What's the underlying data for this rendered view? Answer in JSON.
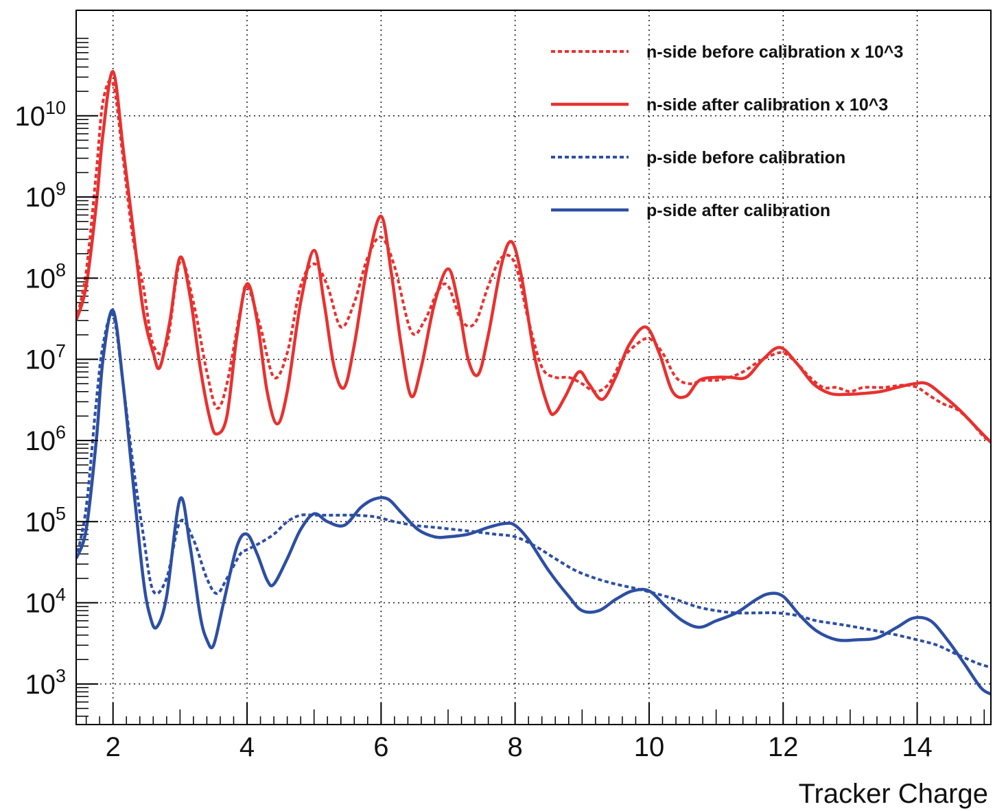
{
  "chart_data": {
    "type": "line",
    "xlabel": "Tracker Charge",
    "ylabel": "",
    "xlim": [
      1.45,
      15.1
    ],
    "ylim_log10": [
      2.5,
      11.3
    ],
    "y_scale": "log",
    "grid": true,
    "legend_position": "top-right",
    "x_ticks": [
      {
        "value": 2,
        "label": "2"
      },
      {
        "value": 4,
        "label": "4"
      },
      {
        "value": 6,
        "label": "6"
      },
      {
        "value": 8,
        "label": "8"
      },
      {
        "value": 10,
        "label": "10"
      },
      {
        "value": 12,
        "label": "12"
      },
      {
        "value": 14,
        "label": "14"
      }
    ],
    "y_ticks": [
      {
        "exp": 3,
        "base": "10",
        "power": "3"
      },
      {
        "exp": 4,
        "base": "10",
        "power": "4"
      },
      {
        "exp": 5,
        "base": "10",
        "power": "5"
      },
      {
        "exp": 6,
        "base": "10",
        "power": "6"
      },
      {
        "exp": 7,
        "base": "10",
        "power": "7"
      },
      {
        "exp": 8,
        "base": "10",
        "power": "8"
      },
      {
        "exp": 9,
        "base": "10",
        "power": "9"
      },
      {
        "exp": 10,
        "base": "10",
        "power": "10"
      }
    ],
    "series": [
      {
        "name": "n-side before calibration x 10^3",
        "color": "#e8312f",
        "style": "dotted",
        "x": [
          1.45,
          1.6,
          1.75,
          1.85,
          2.0,
          2.15,
          2.3,
          2.45,
          2.6,
          2.8,
          3.0,
          3.2,
          3.4,
          3.55,
          3.7,
          3.9,
          4.0,
          4.2,
          4.4,
          4.6,
          4.8,
          5.0,
          5.2,
          5.4,
          5.6,
          5.8,
          6.0,
          6.2,
          6.45,
          6.65,
          6.85,
          7.0,
          7.2,
          7.4,
          7.6,
          7.8,
          8.0,
          8.2,
          8.4,
          8.6,
          8.8,
          9.0,
          9.2,
          9.4,
          9.6,
          9.8,
          10.0,
          10.2,
          10.4,
          10.6,
          10.8,
          11.0,
          11.2,
          11.4,
          11.6,
          11.8,
          12.0,
          12.2,
          12.4,
          12.6,
          12.8,
          13.0,
          13.2,
          13.5,
          13.8,
          14.0,
          14.2,
          14.4,
          14.6,
          14.8,
          15.0,
          15.1
        ],
        "y": [
          30000000.0,
          120000000.0,
          2000000000.0,
          15000000000.0,
          25000000000.0,
          3000000000.0,
          300000000.0,
          80000000.0,
          15000000.0,
          15000000.0,
          160000000.0,
          50000000.0,
          7000000.0,
          2500000.0,
          5000000.0,
          40000000.0,
          80000000.0,
          25000000.0,
          6000000.0,
          12000000.0,
          80000000.0,
          150000000.0,
          80000000.0,
          25000000.0,
          50000000.0,
          180000000.0,
          320000000.0,
          140000000.0,
          22000000.0,
          30000000.0,
          70000000.0,
          80000000.0,
          30000000.0,
          28000000.0,
          80000000.0,
          180000000.0,
          150000000.0,
          30000000.0,
          8000000.0,
          6000000.0,
          6000000.0,
          5000000.0,
          4000000.0,
          5000000.0,
          10000000.0,
          15000000.0,
          18000000.0,
          12000000.0,
          6000000.0,
          5000000.0,
          5500000.0,
          5500000.0,
          6000000.0,
          7000000.0,
          9000000.0,
          11000000.0,
          12000000.0,
          9000000.0,
          6000000.0,
          4500000.0,
          4500000.0,
          4000000.0,
          4500000.0,
          4500000.0,
          4800000.0,
          4500000.0,
          3500000.0,
          2800000.0,
          2400000.0,
          1700000.0,
          1100000.0,
          1000000.0
        ]
      },
      {
        "name": "n-side after  calibration x 10^3",
        "color": "#e8312f",
        "style": "solid",
        "x": [
          1.45,
          1.6,
          1.75,
          1.85,
          2.0,
          2.15,
          2.3,
          2.45,
          2.6,
          2.7,
          2.85,
          3.0,
          3.15,
          3.3,
          3.45,
          3.55,
          3.7,
          3.85,
          4.0,
          4.15,
          4.3,
          4.45,
          4.6,
          4.8,
          5.0,
          5.15,
          5.3,
          5.45,
          5.6,
          5.8,
          6.0,
          6.15,
          6.3,
          6.45,
          6.6,
          6.8,
          7.0,
          7.15,
          7.3,
          7.45,
          7.6,
          7.8,
          7.95,
          8.1,
          8.3,
          8.5,
          8.6,
          8.75,
          8.95,
          9.1,
          9.3,
          9.5,
          9.7,
          9.95,
          10.15,
          10.35,
          10.55,
          10.75,
          11.0,
          11.2,
          11.45,
          11.7,
          11.95,
          12.2,
          12.45,
          12.7,
          12.95,
          13.2,
          13.45,
          13.7,
          13.95,
          14.15,
          14.4,
          14.65,
          14.9,
          15.1
        ],
        "y": [
          30000000.0,
          80000000.0,
          800000000.0,
          6000000000.0,
          35000000000.0,
          4000000000.0,
          400000000.0,
          40000000.0,
          12000000.0,
          8000000.0,
          30000000.0,
          180000000.0,
          60000000.0,
          8000000.0,
          1800000.0,
          1200000.0,
          2000000.0,
          20000000.0,
          85000000.0,
          30000000.0,
          4000000.0,
          1600000.0,
          4000000.0,
          50000000.0,
          220000000.0,
          50000000.0,
          8000000.0,
          4500000.0,
          15000000.0,
          150000000.0,
          580000000.0,
          120000000.0,
          15000000.0,
          3500000.0,
          8000000.0,
          50000000.0,
          130000000.0,
          50000000.0,
          10000000.0,
          6500000.0,
          20000000.0,
          150000000.0,
          280000000.0,
          100000000.0,
          10000000.0,
          2500000.0,
          2200000.0,
          3500000.0,
          7000000.0,
          5000000.0,
          3200000.0,
          6000000.0,
          15000000.0,
          25000000.0,
          12000000.0,
          4000000.0,
          3500000.0,
          5500000.0,
          6000000.0,
          6000000.0,
          6000000.0,
          10000000.0,
          14000000.0,
          9000000.0,
          5000000.0,
          3800000.0,
          3700000.0,
          3800000.0,
          4000000.0,
          4500000.0,
          5000000.0,
          5000000.0,
          3500000.0,
          2300000.0,
          1400000.0,
          950000.0
        ]
      },
      {
        "name": "p-side before calibration",
        "color": "#2d4fa3",
        "style": "dotted",
        "x": [
          1.45,
          1.6,
          1.75,
          1.85,
          2.0,
          2.15,
          2.3,
          2.45,
          2.6,
          2.8,
          3.0,
          3.2,
          3.4,
          3.55,
          3.7,
          3.9,
          4.0,
          4.2,
          4.4,
          4.6,
          4.8,
          5.0,
          5.3,
          5.6,
          5.9,
          6.2,
          6.5,
          6.8,
          7.1,
          7.4,
          7.7,
          8.0,
          8.3,
          8.6,
          8.9,
          9.2,
          9.5,
          9.8,
          10.1,
          10.4,
          10.7,
          11.0,
          11.3,
          11.6,
          11.9,
          12.2,
          12.5,
          12.8,
          13.1,
          13.4,
          13.7,
          14.0,
          14.3,
          14.6,
          14.9,
          15.1
        ],
        "y": [
          35000.0,
          150000.0,
          3000000.0,
          15000000.0,
          35000000.0,
          5000000.0,
          500000.0,
          70000.0,
          14000.0,
          20000.0,
          100000.0,
          60000.0,
          20000.0,
          13000.0,
          20000.0,
          40000.0,
          45000.0,
          55000.0,
          70000.0,
          100000.0,
          120000.0,
          120000.0,
          120000.0,
          120000.0,
          115000.0,
          100000.0,
          90000.0,
          85000.0,
          80000.0,
          75000.0,
          70000.0,
          65000.0,
          50000.0,
          35000.0,
          25000.0,
          20000.0,
          17000.0,
          15000.0,
          13000.0,
          11000.0,
          9000.0,
          8000.0,
          7500.0,
          7500.0,
          7500.0,
          7000.0,
          6000.0,
          5500.0,
          5000.0,
          4500.0,
          4000.0,
          3500.0,
          3000.0,
          2300.0,
          1800.0,
          1600.0
        ]
      },
      {
        "name": "p-side after  calibration",
        "color": "#2d4fa3",
        "style": "solid",
        "x": [
          1.45,
          1.6,
          1.75,
          1.85,
          2.0,
          2.15,
          2.3,
          2.45,
          2.55,
          2.65,
          2.8,
          3.0,
          3.15,
          3.3,
          3.4,
          3.5,
          3.65,
          3.85,
          4.0,
          4.15,
          4.3,
          4.4,
          4.6,
          4.8,
          5.0,
          5.2,
          5.45,
          5.7,
          5.9,
          6.1,
          6.3,
          6.55,
          6.8,
          7.0,
          7.3,
          7.6,
          7.85,
          8.0,
          8.2,
          8.5,
          8.8,
          9.0,
          9.25,
          9.5,
          9.75,
          10.0,
          10.25,
          10.5,
          10.75,
          11.0,
          11.3,
          11.6,
          11.8,
          12.0,
          12.25,
          12.5,
          12.8,
          13.1,
          13.4,
          13.7,
          13.95,
          14.2,
          14.45,
          14.7,
          14.95,
          15.1
        ],
        "y": [
          35000.0,
          80000.0,
          1000000.0,
          10000000.0,
          40000000.0,
          5000000.0,
          300000.0,
          20000.0,
          7000.0,
          5000.0,
          12000.0,
          190000.0,
          50000.0,
          7000.0,
          3500.0,
          3000.0,
          10000.0,
          50000.0,
          70000.0,
          40000.0,
          19000.0,
          17000.0,
          35000.0,
          80000.0,
          125000.0,
          100000.0,
          90000.0,
          150000.0,
          190000.0,
          190000.0,
          130000.0,
          80000.0,
          65000.0,
          65000.0,
          70000.0,
          85000.0,
          95000.0,
          90000.0,
          60000.0,
          25000.0,
          12000.0,
          8000.0,
          8000.0,
          11000.0,
          14000.0,
          14000.0,
          9000.0,
          6000.0,
          5000.0,
          6000.0,
          7500.0,
          11000.0,
          13000.0,
          12000.0,
          7000.0,
          4500.0,
          3500.0,
          3500.0,
          3700.0,
          5000.0,
          6500.0,
          6000.0,
          3500.0,
          1800.0,
          900.0,
          750.0
        ]
      }
    ]
  }
}
